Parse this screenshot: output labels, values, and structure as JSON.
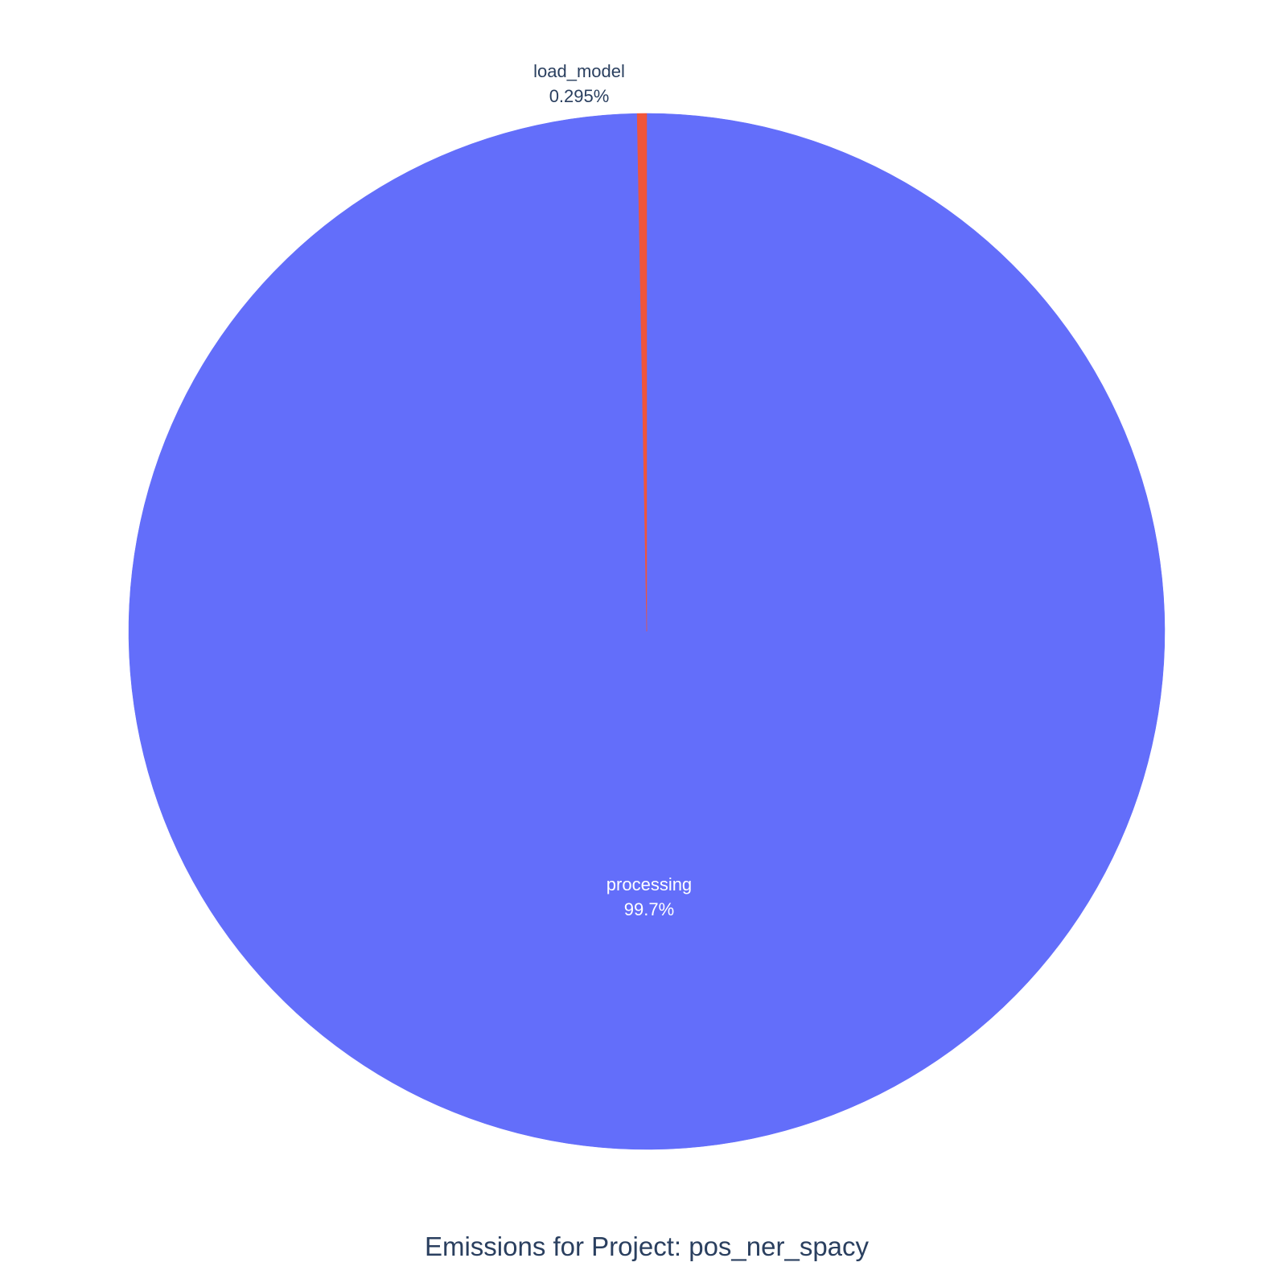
{
  "chart_data": {
    "type": "pie",
    "title": "Emissions for Project: pos_ner_spacy",
    "slices": [
      {
        "label": "processing",
        "value": 99.705,
        "percent_text": "99.7%",
        "color": "#636EFA",
        "label_color": "#ffffff",
        "label_position": "inside"
      },
      {
        "label": "load_model",
        "value": 0.295,
        "percent_text": "0.295%",
        "color": "#EF553B",
        "label_color": "#2a3f5f",
        "label_position": "outside"
      }
    ],
    "direction": "clockwise",
    "title_color": "#2a3f5f",
    "background": "#ffffff"
  }
}
